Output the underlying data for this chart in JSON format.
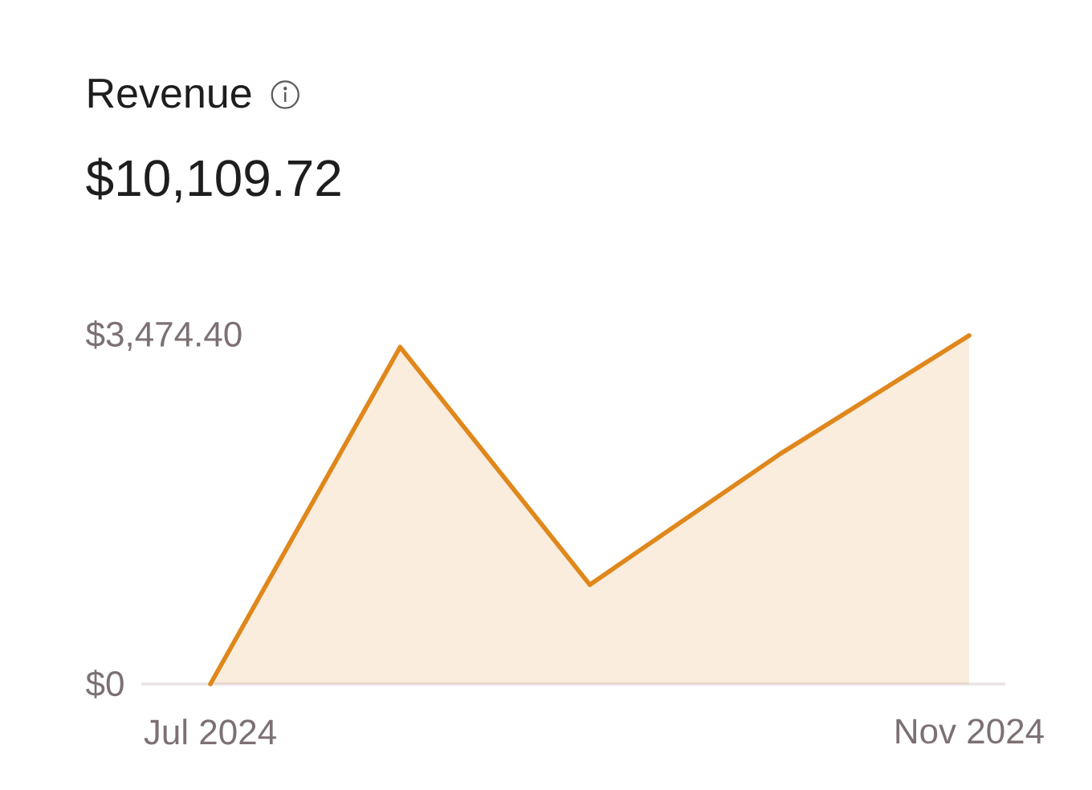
{
  "chart_data": {
    "type": "area",
    "title": "Revenue",
    "subtitle": "$10,109.72",
    "categories": [
      "Jul 2024",
      null,
      null,
      null,
      "Nov 2024"
    ],
    "values": [
      0,
      3360,
      990,
      2290,
      3474.4
    ],
    "color": "#e0871c",
    "ylim": [
      0,
      3474.4
    ],
    "yticks": [
      {
        "value": 0,
        "label": "$0"
      },
      {
        "value": 3474.4,
        "label": "$3,474.40"
      }
    ]
  }
}
